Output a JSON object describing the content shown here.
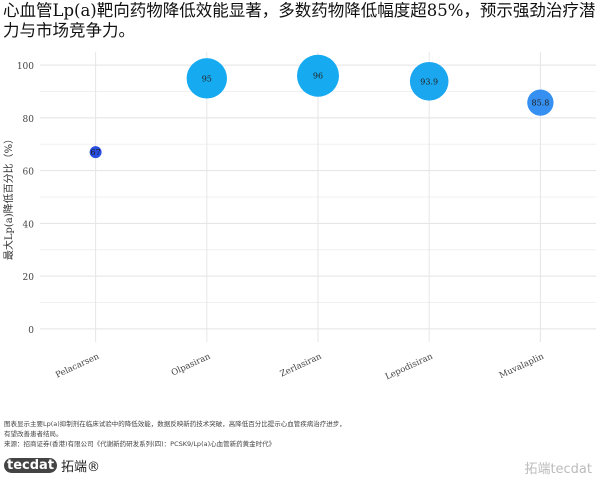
{
  "title": "心血管Lp(a)靶向药物降低效能显著，多数药物降低幅度超85%，预示强劲治疗潜力与市场竞争力。",
  "chart_data": {
    "type": "scatter",
    "title": "心血管Lp(a)靶向药物降低效能显著，多数药物降低幅度超85%，预示强劲治疗潜力与市场竞争力。",
    "xlabel": "",
    "ylabel": "最大Lp(a)降低百分比（%）",
    "categories": [
      "Pelacarsen",
      "Olpasiran",
      "Zerlasiran",
      "Lepodisiran",
      "Muvalaplin"
    ],
    "values": [
      67,
      95,
      96,
      93.9,
      85.8
    ],
    "labels": [
      "67",
      "95",
      "96",
      "93.9",
      "85.8"
    ],
    "colors": [
      "#1c45e0",
      "#0aa6f0",
      "#0aa6f0",
      "#0ea2ef",
      "#2a8af0"
    ],
    "ylim": [
      -5,
      105
    ],
    "yticks": [
      "0",
      "20",
      "40",
      "60",
      "80",
      "100"
    ],
    "grid": true,
    "legend": "none",
    "size_encodes": "value"
  },
  "notes": {
    "line1": "图表显示主要Lp(a)抑制剂在临床试验中的降低效能，数据反映新药技术突破，高降低百分比提示心血管疾病治疗进步，",
    "line2": "有望改善患者结局。",
    "source": "来源：招商证券(香港)有限公司《代谢新药研发系列(四)：PCSK9/Lp(a)心血管新药黄金时代》"
  },
  "logo": {
    "brand": "tecdat",
    "cn": "拓端®"
  },
  "watermark": "拓端tecdat"
}
